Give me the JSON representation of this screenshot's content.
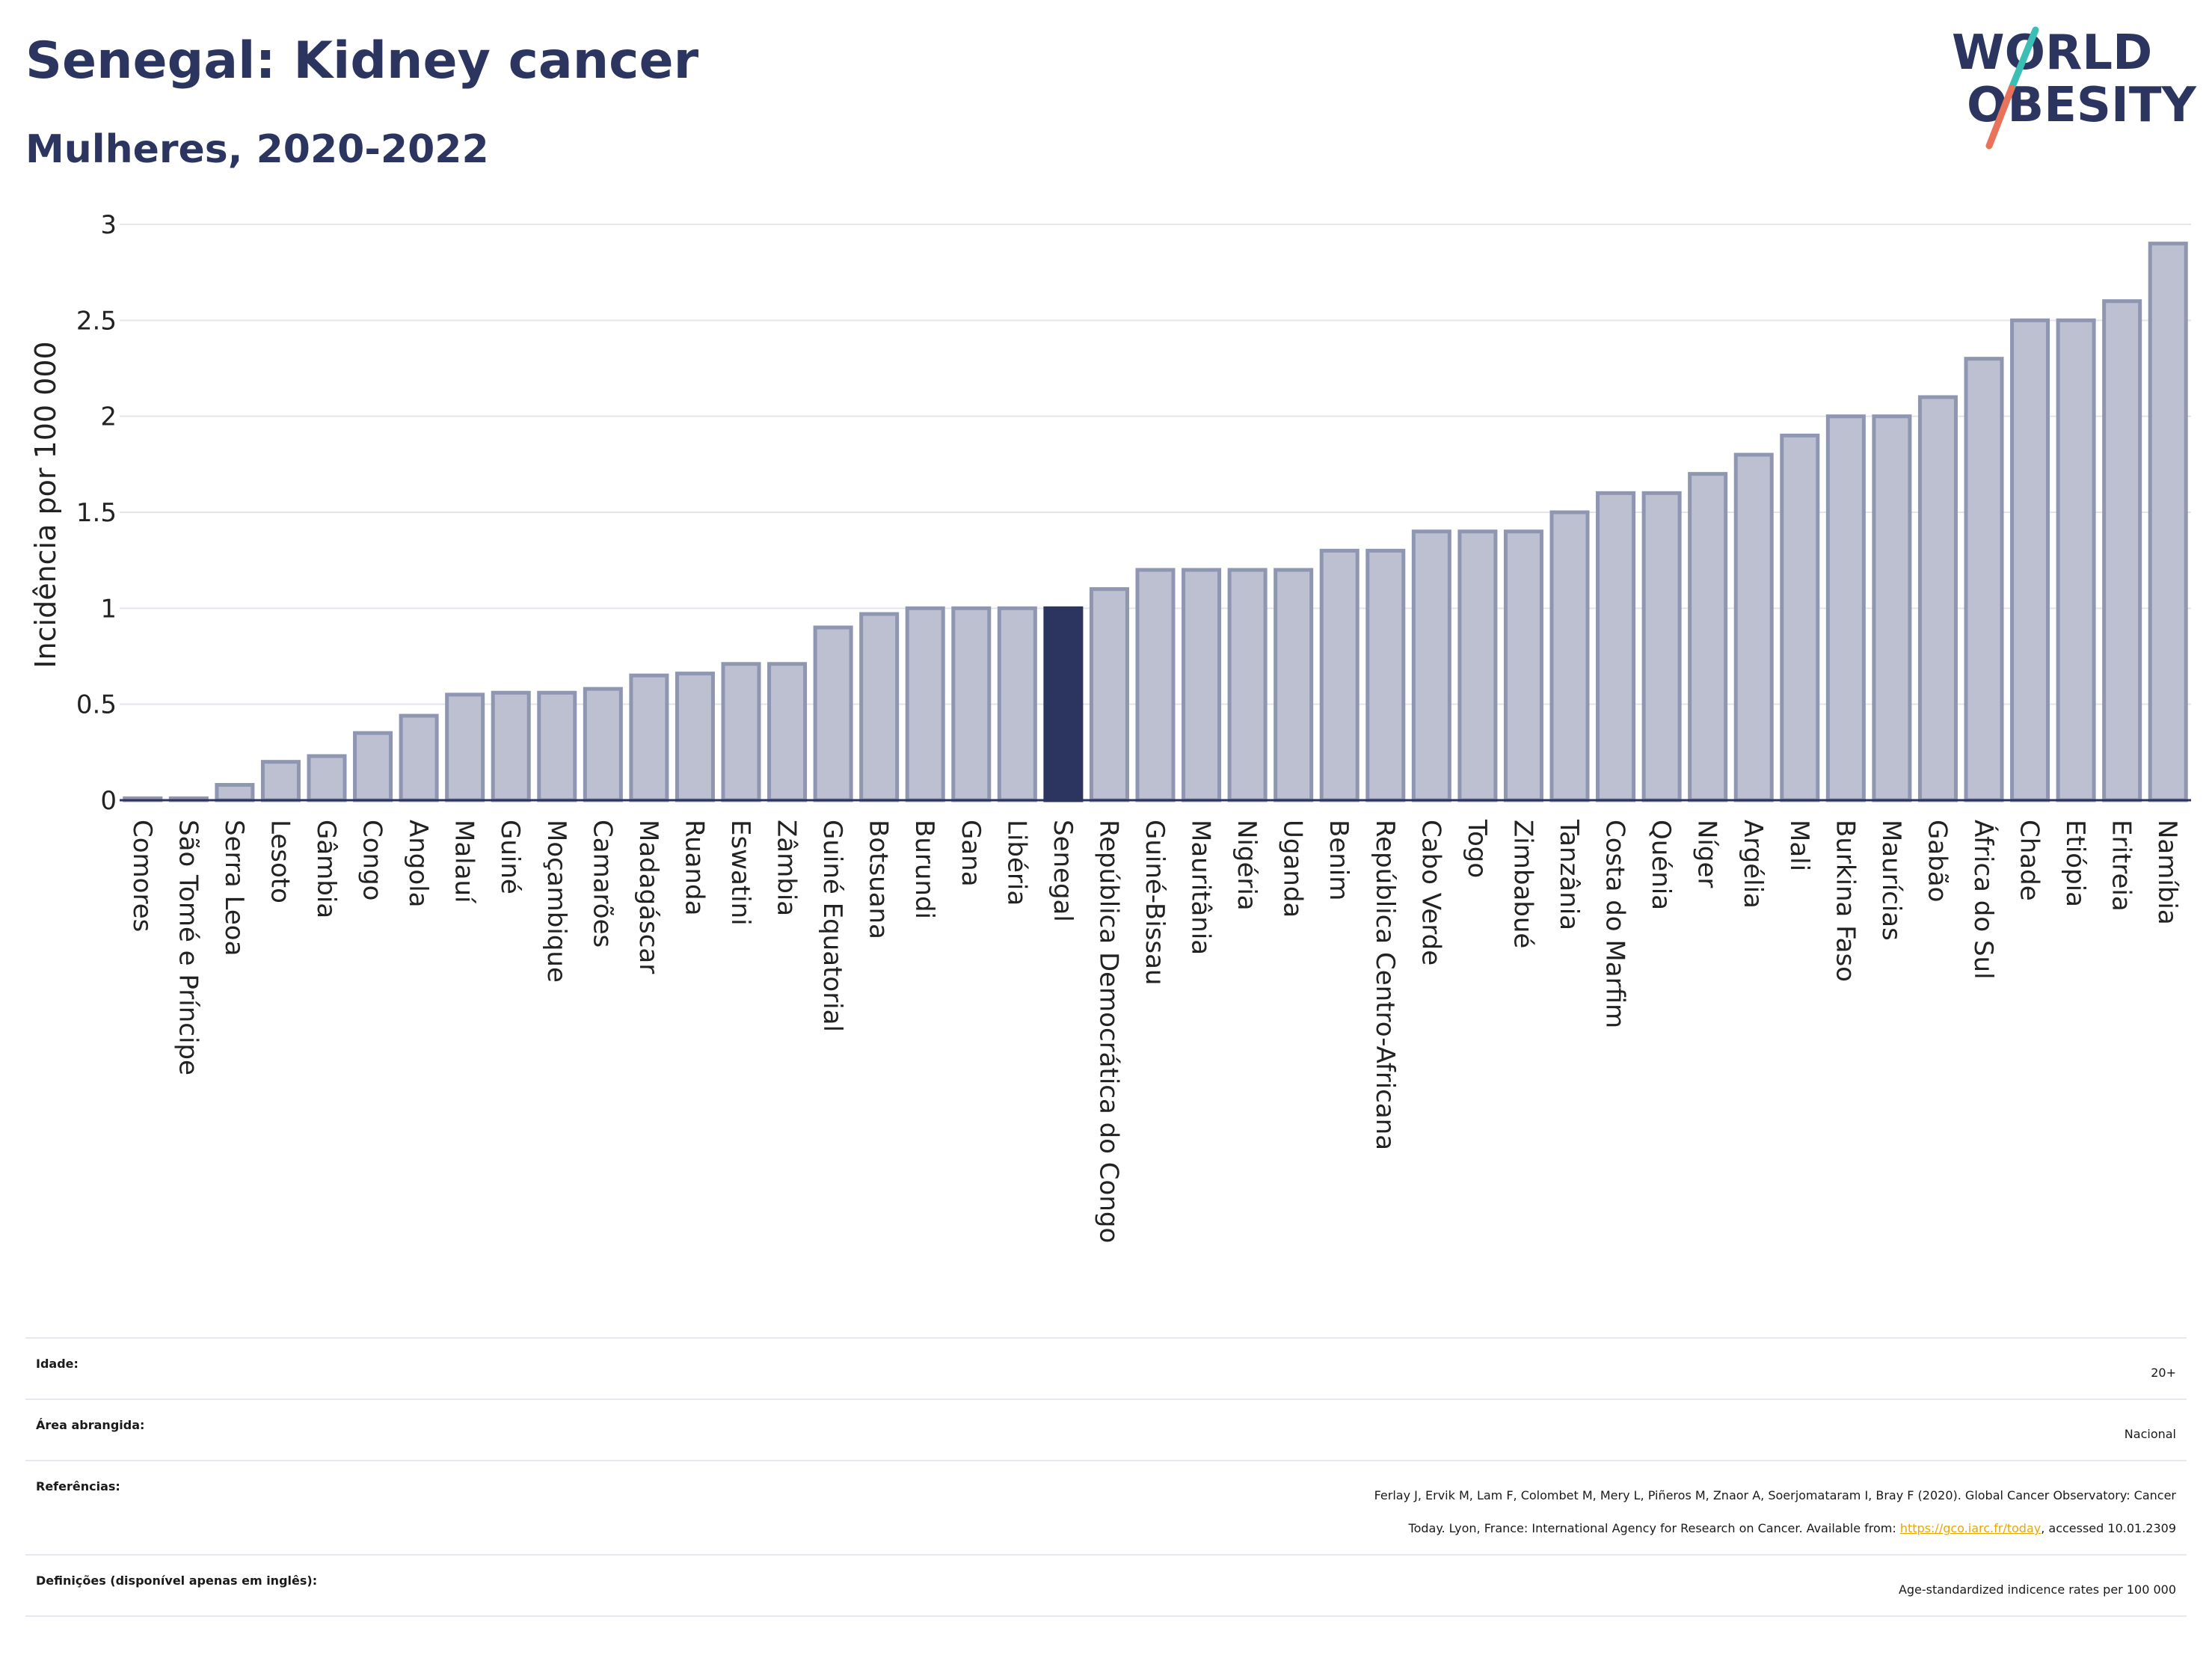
{
  "header": {
    "title": "Senegal: Kidney cancer",
    "subtitle": "Mulheres, 2020-2022"
  },
  "logo": {
    "line1": "WORLD",
    "line2": "OBESITY",
    "colors": {
      "text": "#2b3560",
      "slash_top": "#3bbfb4",
      "slash_bottom": "#e8735a"
    }
  },
  "colors": {
    "bar_fill": "#bcc0d0",
    "bar_stroke": "#8f96b2",
    "highlight": "#2b3560",
    "grid": "#e3e5ec"
  },
  "chart_data": {
    "type": "bar",
    "title": "Senegal: Kidney cancer",
    "subtitle": "Mulheres, 2020-2022",
    "ylabel": "Incidência por 100 000",
    "xlabel": "",
    "ylim": [
      0,
      3
    ],
    "yticks": [
      0,
      0.5,
      1,
      1.5,
      2,
      2.5,
      3
    ],
    "grid": true,
    "highlight": "Senegal",
    "categories": [
      "Comores",
      "São Tomé e Príncipe",
      "Serra Leoa",
      "Lesoto",
      "Gâmbia",
      "Congo",
      "Angola",
      "Malauí",
      "Guiné",
      "Moçambique",
      "Camarões",
      "Madagáscar",
      "Ruanda",
      "Eswatini",
      "Zâmbia",
      "Guiné Equatorial",
      "Botsuana",
      "Burundi",
      "Gana",
      "Libéria",
      "Senegal",
      "República Democrática do Congo",
      "Guiné-Bissau",
      "Mauritânia",
      "Nigéria",
      "Uganda",
      "Benim",
      "República Centro-Africana",
      "Cabo Verde",
      "Togo",
      "Zimbabué",
      "Tanzânia",
      "Costa do Marfim",
      "Quénia",
      "Níger",
      "Argélia",
      "Mali",
      "Burkina Faso",
      "Maurícias",
      "Gabão",
      "África do Sul",
      "Chade",
      "Etiópia",
      "Eritreia",
      "Namíbia"
    ],
    "values": [
      0.01,
      0.01,
      0.08,
      0.2,
      0.23,
      0.35,
      0.44,
      0.55,
      0.56,
      0.56,
      0.58,
      0.65,
      0.66,
      0.71,
      0.71,
      0.9,
      0.97,
      1.0,
      1.0,
      1.0,
      1.0,
      1.1,
      1.2,
      1.2,
      1.2,
      1.2,
      1.3,
      1.3,
      1.4,
      1.4,
      1.4,
      1.5,
      1.6,
      1.6,
      1.7,
      1.8,
      1.9,
      2.0,
      2.0,
      2.1,
      2.3,
      2.5,
      2.5,
      2.6,
      2.9
    ]
  },
  "info": {
    "age_label": "Idade:",
    "age_value": "20+",
    "area_label": "Área abrangida:",
    "area_value": "Nacional",
    "refs_label": "Referências:",
    "refs_line1": "Ferlay J, Ervik M, Lam F, Colombet M, Mery L, Piñeros M, Znaor A, Soerjomataram I, Bray F (2020). Global Cancer Observatory: Cancer",
    "refs_line2_pre": "Today. Lyon, France: International Agency for Research on Cancer. Available from: ",
    "refs_link": "https://gco.iarc.fr/today",
    "refs_line2_post": ", accessed 10.01.2309",
    "defs_label": "Definições (disponível apenas em inglês):",
    "defs_value": "Age-standardized indicence rates per 100 000"
  }
}
